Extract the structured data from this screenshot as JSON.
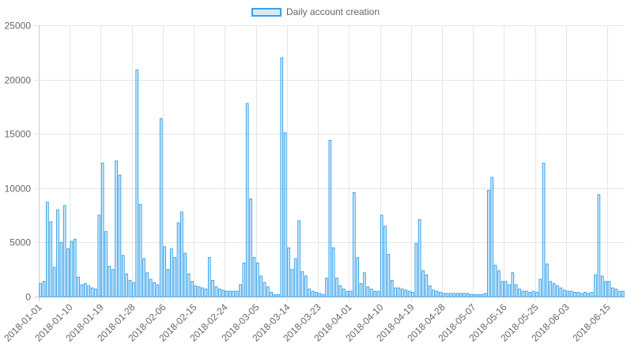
{
  "chart_data": {
    "type": "bar",
    "legend": {
      "label": "Daily account creation",
      "position": "top"
    },
    "ylim": [
      0,
      25000
    ],
    "yticks": [
      0,
      5000,
      10000,
      15000,
      20000,
      25000
    ],
    "xtick_labels": [
      "2018-01-01",
      "2018-01-10",
      "2018-01-19",
      "2018-01-28",
      "2018-02-06",
      "2018-02-15",
      "2018-02-24",
      "2018-03-05",
      "2018-03-14",
      "2018-03-23",
      "2018-04-01",
      "2018-04-10",
      "2018-04-19",
      "2018-04-28",
      "2018-05-07",
      "2018-05-16",
      "2018-05-25",
      "2018-06-03",
      "2018-06-15"
    ],
    "series": [
      {
        "start": "2018-01-01",
        "values": [
          1200,
          1400,
          8700,
          6900,
          2700,
          8000,
          5000,
          8400,
          4400,
          5100,
          5300,
          1800,
          1100,
          1200,
          1000,
          800,
          700,
          7500,
          12300,
          6000,
          2800,
          2500,
          12500,
          11200,
          3800,
          2100,
          1500,
          1300,
          20900,
          8500,
          3500,
          2200,
          1600,
          1300,
          1100,
          16400,
          4600,
          2500,
          4400,
          3600,
          6800,
          7800,
          4000,
          2100,
          1400,
          1000,
          900,
          800,
          700,
          3600,
          1500,
          900,
          700,
          600,
          500,
          500,
          500,
          500,
          1100,
          3100,
          17800,
          9000,
          3600,
          3100,
          1900,
          1300,
          900,
          400,
          200,
          200,
          22000,
          15100,
          4500,
          2500,
          3500,
          7000,
          2300,
          1900,
          700,
          500,
          400,
          300,
          200,
          1700,
          14400,
          4500,
          1700,
          1000,
          700,
          500,
          500,
          9600,
          3600,
          1200,
          2200,
          900,
          700,
          500,
          500,
          7500,
          6500,
          3900,
          1500,
          800,
          800,
          700,
          600,
          500,
          400,
          4900,
          7100,
          2400,
          2000,
          1000,
          600,
          500,
          400,
          300,
          300,
          300,
          300,
          300,
          300,
          300,
          300,
          200,
          200,
          200,
          200,
          300,
          9800,
          11000,
          2900,
          2400,
          1400,
          1400,
          1100,
          2200,
          1100,
          700,
          500,
          500,
          400,
          500,
          400,
          1600,
          12300,
          3000,
          1400,
          1200,
          1000,
          800,
          600,
          500,
          500,
          400,
          400,
          300,
          400,
          300,
          400,
          2000,
          9400,
          1900,
          1400,
          1400,
          800,
          700,
          500,
          500
        ]
      }
    ]
  }
}
